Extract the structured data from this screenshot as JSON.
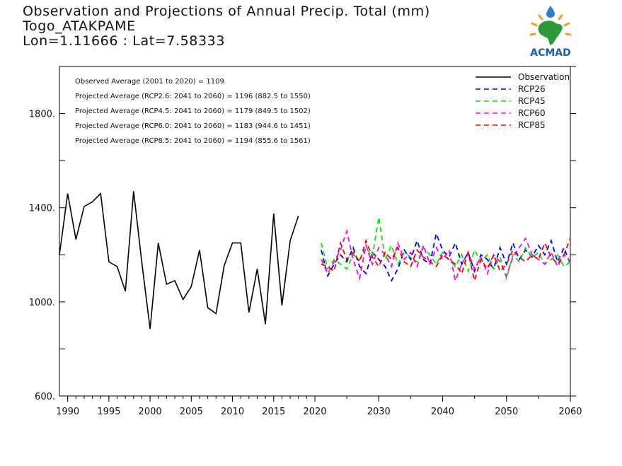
{
  "title_lines": [
    "Observation and Projections of Annual Precip. Total (mm)",
    "Togo_ATAKPAME",
    "Lon=1.11666 : Lat=7.58333"
  ],
  "logo": {
    "text": "ACMAD"
  },
  "colors": {
    "observation": "#000000",
    "rcp26": "#0000ff",
    "rcp45": "#00ee00",
    "rcp60": "#ff00ff",
    "rcp85": "#ff0000"
  },
  "annotations": [
    "Observed Average (2001 to 2020) = 1109",
    "Projected Average (RCP2.6: 2041 to 2060) = 1196 (882.5 to 1550)",
    "Projected Average (RCP4.5: 2041 to 2060) = 1179 (849.5 to 1502)",
    "Projected Average (RCP6.0: 2041 to 2060) = 1183 (944.6 to 1451)",
    "Projected Average (RCP8.5: 2041 to 2060) = 1194 (855.6 to 1561)"
  ],
  "chart_data": {
    "type": "line",
    "title": "Observation and Projections of Annual Precip. Total (mm)",
    "xlabel": "",
    "ylabel": "",
    "xlim": [
      1989,
      2060
    ],
    "ylim": [
      600,
      2000
    ],
    "grid": false,
    "legend_position": "top-right",
    "x_ticks_left": [
      1990,
      1995,
      2000,
      2005,
      2010,
      2015,
      2020
    ],
    "x_ticks_right": [
      2030,
      2040,
      2050,
      2060
    ],
    "y_ticks": [
      "600.",
      "1000.",
      "1400.",
      "1800."
    ],
    "series": [
      {
        "name": "Observation",
        "style": "solid",
        "x": [
          1989,
          1990,
          1991,
          1992,
          1993,
          1994,
          1995,
          1996,
          1997,
          1998,
          1999,
          2000,
          2001,
          2002,
          2003,
          2004,
          2005,
          2006,
          2007,
          2008,
          2009,
          2010,
          2011,
          2012,
          2013,
          2014,
          2015,
          2016,
          2017,
          2018,
          2019,
          2020
        ],
        "values": [
          1200,
          1460,
          1265,
          1405,
          1425,
          1460,
          1170,
          1150,
          1045,
          1470,
          1165,
          885,
          1250,
          1075,
          1090,
          1010,
          1065,
          1220,
          975,
          950,
          1155,
          1250,
          1250,
          955,
          1140,
          905,
          1375,
          985,
          1260,
          1365,
          null,
          null
        ]
      },
      {
        "name": "RCP26",
        "style": "dashed",
        "x": [
          2021,
          2022,
          2023,
          2024,
          2025,
          2026,
          2027,
          2028,
          2029,
          2030,
          2031,
          2032,
          2033,
          2034,
          2035,
          2036,
          2037,
          2038,
          2039,
          2040,
          2041,
          2042,
          2043,
          2044,
          2045,
          2046,
          2047,
          2048,
          2049,
          2050,
          2051,
          2052,
          2053,
          2054,
          2055,
          2056,
          2057,
          2058,
          2059,
          2060
        ],
        "values": [
          1220,
          1110,
          1160,
          1200,
          1170,
          1230,
          1150,
          1120,
          1210,
          1180,
          1150,
          1090,
          1140,
          1220,
          1180,
          1260,
          1180,
          1160,
          1290,
          1220,
          1190,
          1250,
          1160,
          1210,
          1130,
          1200,
          1180,
          1140,
          1230,
          1160,
          1250,
          1180,
          1220,
          1190,
          1240,
          1200,
          1260,
          1170,
          1230,
          1160
        ]
      },
      {
        "name": "RCP45",
        "style": "dashed",
        "x": [
          2021,
          2022,
          2023,
          2024,
          2025,
          2026,
          2027,
          2028,
          2029,
          2030,
          2031,
          2032,
          2033,
          2034,
          2035,
          2036,
          2037,
          2038,
          2039,
          2040,
          2041,
          2042,
          2043,
          2044,
          2045,
          2046,
          2047,
          2048,
          2049,
          2050,
          2051,
          2052,
          2053,
          2054,
          2055,
          2056,
          2057,
          2058,
          2059,
          2060
        ],
        "values": [
          1250,
          1140,
          1180,
          1160,
          1140,
          1200,
          1180,
          1230,
          1190,
          1360,
          1180,
          1240,
          1160,
          1210,
          1190,
          1170,
          1230,
          1200,
          1160,
          1210,
          1180,
          1150,
          1200,
          1130,
          1220,
          1170,
          1200,
          1140,
          1190,
          1100,
          1200,
          1170,
          1230,
          1190,
          1210,
          1160,
          1180,
          1200,
          1150,
          1170
        ]
      },
      {
        "name": "RCP60",
        "style": "dashed",
        "x": [
          2021,
          2022,
          2023,
          2024,
          2025,
          2026,
          2027,
          2028,
          2029,
          2030,
          2031,
          2032,
          2033,
          2034,
          2035,
          2036,
          2037,
          2038,
          2039,
          2040,
          2041,
          2042,
          2043,
          2044,
          2045,
          2046,
          2047,
          2048,
          2049,
          2050,
          2051,
          2052,
          2053,
          2054,
          2055,
          2056,
          2057,
          2058,
          2059,
          2060
        ],
        "values": [
          1180,
          1120,
          1170,
          1220,
          1300,
          1180,
          1100,
          1240,
          1160,
          1230,
          1200,
          1150,
          1250,
          1180,
          1210,
          1150,
          1240,
          1160,
          1230,
          1180,
          1220,
          1090,
          1160,
          1210,
          1140,
          1190,
          1120,
          1200,
          1170,
          1110,
          1190,
          1230,
          1270,
          1200,
          1180,
          1160,
          1210,
          1150,
          1200,
          1170
        ]
      },
      {
        "name": "RCP85",
        "style": "dashed",
        "x": [
          2021,
          2022,
          2023,
          2024,
          2025,
          2026,
          2027,
          2028,
          2029,
          2030,
          2031,
          2032,
          2033,
          2034,
          2035,
          2036,
          2037,
          2038,
          2039,
          2040,
          2041,
          2042,
          2043,
          2044,
          2045,
          2046,
          2047,
          2048,
          2049,
          2050,
          2051,
          2052,
          2053,
          2054,
          2055,
          2056,
          2057,
          2058,
          2059,
          2060
        ],
        "values": [
          1160,
          1150,
          1130,
          1250,
          1180,
          1210,
          1170,
          1260,
          1190,
          1150,
          1210,
          1180,
          1230,
          1170,
          1150,
          1220,
          1190,
          1170,
          1150,
          1200,
          1180,
          1160,
          1120,
          1210,
          1090,
          1180,
          1140,
          1200,
          1130,
          1160,
          1220,
          1190,
          1170,
          1200,
          1180,
          1250,
          1190,
          1160,
          1200,
          1270
        ]
      }
    ]
  }
}
